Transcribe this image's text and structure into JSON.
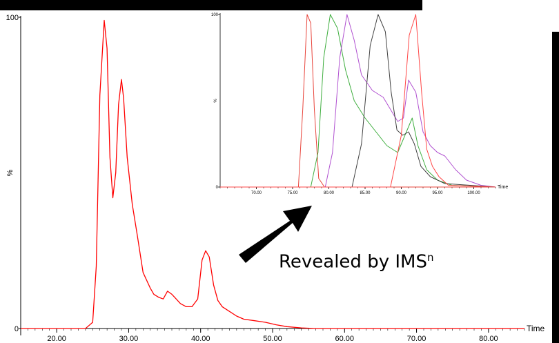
{
  "annotation": {
    "text": "Revealed by IMS",
    "superscript": "n"
  },
  "colors": {
    "main_line": "#ff0000",
    "arrow": "#000000",
    "bars": "#000000"
  },
  "chart_data": [
    {
      "type": "line",
      "title": "",
      "xlabel": "Time",
      "ylabel": "%",
      "xlim": [
        15,
        85
      ],
      "ylim": [
        0,
        100
      ],
      "grid": false,
      "x_ticks": [
        "20.00",
        "30.00",
        "40.00",
        "50.00",
        "60.00",
        "70.00",
        "80.00"
      ],
      "y_ticks": [
        "100",
        "0"
      ],
      "series": [
        {
          "color": "#ff0000",
          "x": [
            15,
            20,
            24,
            25,
            25.5,
            26,
            26.6,
            27,
            27.4,
            27.8,
            28.2,
            28.6,
            29.0,
            29.3,
            29.8,
            30.5,
            31.2,
            32,
            33,
            33.5,
            34.2,
            34.8,
            35.4,
            36,
            36.6,
            37.2,
            38,
            38.8,
            39.6,
            40.2,
            40.7,
            41.2,
            41.8,
            42.4,
            43,
            44,
            45,
            46,
            47.5,
            49,
            50.5,
            52,
            54,
            56,
            60,
            70,
            85
          ],
          "y": [
            0,
            0,
            0,
            2,
            20,
            75,
            99,
            90,
            55,
            42,
            50,
            72,
            80,
            74,
            55,
            40,
            30,
            18,
            13,
            11,
            10,
            9.5,
            12,
            11,
            9.5,
            8,
            7,
            7,
            9.5,
            22,
            25,
            23,
            14,
            9,
            7,
            5.5,
            4,
            3,
            2.5,
            2,
            1.2,
            0.6,
            0.2,
            0,
            0,
            0,
            0
          ]
        }
      ]
    },
    {
      "type": "line",
      "title": "",
      "xlabel": "Time",
      "ylabel": "%",
      "xlim": [
        65,
        103
      ],
      "ylim": [
        0,
        100
      ],
      "grid": false,
      "x_ticks": [
        "70.00",
        "75.00",
        "80.00",
        "85.00",
        "90.00",
        "95.00",
        "100.00"
      ],
      "y_ticks": [
        "100",
        "0"
      ],
      "series": [
        {
          "color": "#e8433a",
          "x": [
            65,
            75.8,
            76.4,
            77.0,
            77.5,
            78.0,
            78.6,
            79.4,
            103
          ],
          "y": [
            0,
            0,
            45,
            100,
            95,
            45,
            5,
            0,
            0
          ]
        },
        {
          "color": "#3fae3f",
          "x": [
            65,
            77.5,
            78.5,
            79.3,
            80.2,
            81.2,
            82.3,
            83.5,
            85,
            86.5,
            88,
            89.5,
            90.5,
            91.5,
            92.3,
            93.5,
            95,
            97,
            103
          ],
          "y": [
            0,
            0,
            20,
            75,
            100,
            92,
            68,
            50,
            40,
            32,
            24,
            20,
            30,
            40,
            24,
            10,
            4,
            1,
            0
          ]
        },
        {
          "color": "#b050d0",
          "x": [
            65,
            79.5,
            80.5,
            81.5,
            82.5,
            83.5,
            84.5,
            86,
            87.5,
            88.5,
            89.5,
            90.3,
            91,
            92,
            93,
            94,
            95,
            96,
            97.5,
            99,
            101,
            103
          ],
          "y": [
            0,
            0,
            20,
            75,
            100,
            85,
            65,
            56,
            52,
            45,
            38,
            40,
            62,
            55,
            32,
            24,
            20,
            18,
            10,
            4,
            1,
            0
          ]
        },
        {
          "color": "#404040",
          "x": [
            65,
            83.2,
            84.5,
            85.7,
            86.8,
            87.8,
            88.6,
            89.4,
            90.2,
            91,
            91.8,
            92.7,
            94,
            96,
            103
          ],
          "y": [
            0,
            0,
            25,
            82,
            100,
            90,
            55,
            33,
            30,
            32,
            25,
            12,
            6,
            2,
            0
          ]
        },
        {
          "color": "#ff4444",
          "x": [
            65,
            88.5,
            90.0,
            91.1,
            92.0,
            92.8,
            93.5,
            94.3,
            95.2,
            96.5,
            103
          ],
          "y": [
            0,
            0,
            30,
            88,
            100,
            55,
            22,
            12,
            6,
            1,
            0
          ]
        }
      ]
    }
  ]
}
